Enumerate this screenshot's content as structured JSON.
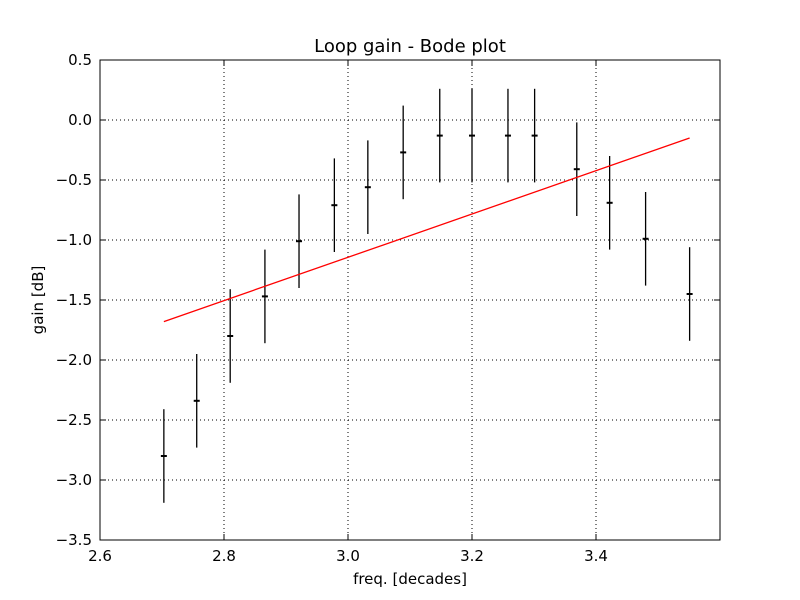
{
  "chart_data": {
    "type": "line",
    "title": "Loop gain - Bode plot",
    "xlabel": "freq. [decades]",
    "ylabel": "gain [dB]",
    "xlim": [
      2.6,
      3.6
    ],
    "ylim": [
      -3.5,
      0.5
    ],
    "x_ticks": [
      2.6,
      2.8,
      3.0,
      3.2,
      3.4
    ],
    "x_tick_labels": [
      "2.6",
      "2.8",
      "3.0",
      "3.2",
      "3.4"
    ],
    "y_ticks": [
      -3.5,
      -3.0,
      -2.5,
      -2.0,
      -1.5,
      -1.0,
      -0.5,
      0.0,
      0.5
    ],
    "y_tick_labels": [
      "−3.5",
      "−3.0",
      "−2.5",
      "−2.0",
      "−1.5",
      "−1.0",
      "−0.5",
      "0.0",
      "0.5"
    ],
    "grid": true,
    "grid_style": "dotted",
    "series": [
      {
        "type": "errorbar",
        "color": "#000000",
        "x": [
          2.703,
          2.756,
          2.81,
          2.866,
          2.921,
          2.978,
          3.032,
          3.089,
          3.148,
          3.2,
          3.258,
          3.301,
          3.369,
          3.422,
          3.48,
          3.551
        ],
        "y": [
          -2.8,
          -2.34,
          -1.8,
          -1.47,
          -1.01,
          -0.71,
          -0.56,
          -0.27,
          -0.13,
          -0.13,
          -0.13,
          -0.13,
          -0.41,
          -0.69,
          -0.99,
          -1.45
        ],
        "yerr": [
          0.39,
          0.39,
          0.39,
          0.39,
          0.39,
          0.39,
          0.39,
          0.39,
          0.39,
          0.39,
          0.39,
          0.39,
          0.39,
          0.39,
          0.39,
          0.39
        ]
      },
      {
        "type": "line",
        "color": "#ff0000",
        "x": [
          2.703,
          3.551
        ],
        "y": [
          -1.68,
          -0.15
        ]
      }
    ]
  }
}
